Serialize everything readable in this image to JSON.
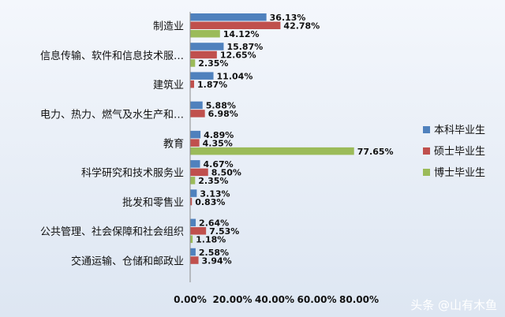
{
  "chart_data": {
    "type": "bar",
    "orientation": "horizontal",
    "categories": [
      "制造业",
      "信息传输、软件和信息技术服…",
      "建筑业",
      "电力、热力、燃气及水生产和…",
      "教育",
      "科学研究和技术服务业",
      "批发和零售业",
      "公共管理、社会保障和社会组织",
      "交通运输、仓储和邮政业"
    ],
    "series": [
      {
        "name": "本科毕业生",
        "color": "#4f81bd",
        "values": [
          36.13,
          15.87,
          11.04,
          5.88,
          4.89,
          4.67,
          3.13,
          2.64,
          2.58
        ],
        "labels": [
          "36.13%",
          "15.87%",
          "11.04%",
          "5.88%",
          "4.89%",
          "4.67%",
          "3.13%",
          "2.64%",
          "2.58%"
        ]
      },
      {
        "name": "硕士毕业生",
        "color": "#c0504d",
        "values": [
          42.78,
          12.65,
          1.87,
          6.98,
          4.35,
          8.5,
          0.83,
          7.53,
          3.94
        ],
        "labels": [
          "42.78%",
          "12.65%",
          "1.87%",
          "6.98%",
          "4.35%",
          "8.50%",
          "0.83%",
          "7.53%",
          "3.94%"
        ]
      },
      {
        "name": "博士毕业生",
        "color": "#9bbb59",
        "values": [
          14.12,
          2.35,
          null,
          null,
          77.65,
          2.35,
          null,
          1.18,
          null
        ],
        "labels": [
          "14.12%",
          "2.35%",
          null,
          null,
          "77.65%",
          "2.35%",
          null,
          "1.18%",
          null
        ]
      }
    ],
    "xlim": [
      0,
      80
    ],
    "xticks": [
      "0.00%",
      "20.00%",
      "40.00%",
      "60.00%",
      "80.00%"
    ],
    "legend_position": "right",
    "grid": false
  },
  "watermark": "头条 @山有木鱼"
}
